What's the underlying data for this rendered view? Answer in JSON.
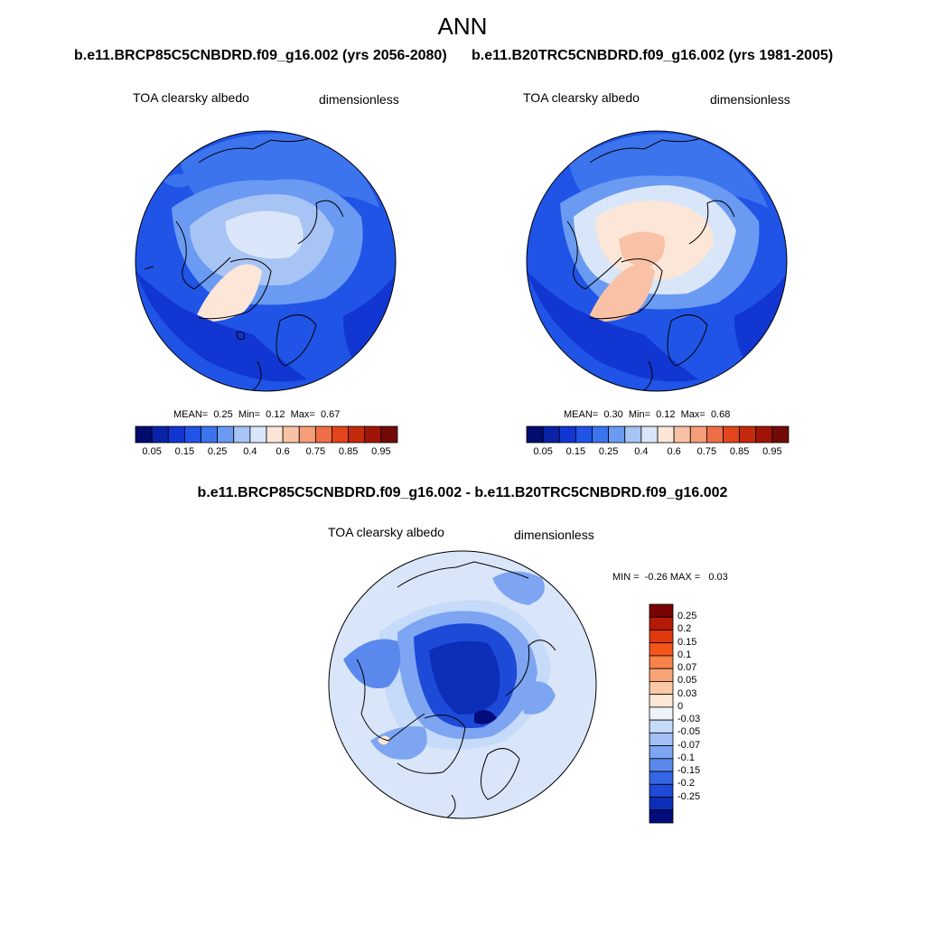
{
  "title": "ANN",
  "panels": [
    {
      "case_title": "b.e11.BRCP85C5CNBDRD.f09_g16.002 (yrs 2056-2080)",
      "var_label": "TOA clearsky albedo",
      "units": "dimensionless",
      "stats": "MEAN=  0.25  Min=  0.12  Max=  0.67"
    },
    {
      "case_title": "b.e11.B20TRC5CNBDRD.f09_g16.002 (yrs 1981-2005)",
      "var_label": "TOA clearsky albedo",
      "units": "dimensionless",
      "stats": "MEAN=  0.30  Min=  0.12  Max=  0.68"
    }
  ],
  "top_colorbar": {
    "colors": [
      "#020b6e",
      "#0a22a8",
      "#1236d2",
      "#1f54e6",
      "#3c74ee",
      "#6a9af2",
      "#a8c4f5",
      "#d9e6f9",
      "#fbe6d7",
      "#f9c2a6",
      "#f59c78",
      "#ee6e48",
      "#e4451d",
      "#c42a0c",
      "#a01408",
      "#720a08"
    ],
    "labels": [
      "0.05",
      "0.15",
      "0.25",
      "0.4",
      "0.6",
      "0.75",
      "0.85",
      "0.95"
    ]
  },
  "diff_panel": {
    "case_title": "b.e11.BRCP85C5CNBDRD.f09_g16.002 - b.e11.B20TRC5CNBDRD.f09_g16.002",
    "var_label": "TOA clearsky albedo",
    "units": "dimensionless",
    "stats": "MIN =  -0.26 MAX =   0.03"
  },
  "diff_colorbar": {
    "colors": [
      "#7a0404",
      "#b41a06",
      "#de3a0e",
      "#f4561a",
      "#f7824a",
      "#f8a377",
      "#fbc9a6",
      "#fbe6d6",
      "#eef3fb",
      "#c6dafa",
      "#a2c0f6",
      "#7ea5f2",
      "#5b88ec",
      "#3566e5",
      "#1e4ad8",
      "#0d2fb8",
      "#020c7c"
    ],
    "labels": [
      "0.25",
      "0.2",
      "0.15",
      "0.1",
      "0.07",
      "0.05",
      "0.03",
      "0",
      "-0.03",
      "-0.05",
      "-0.07",
      "-0.1",
      "-0.15",
      "-0.2",
      "-0.25"
    ]
  }
}
